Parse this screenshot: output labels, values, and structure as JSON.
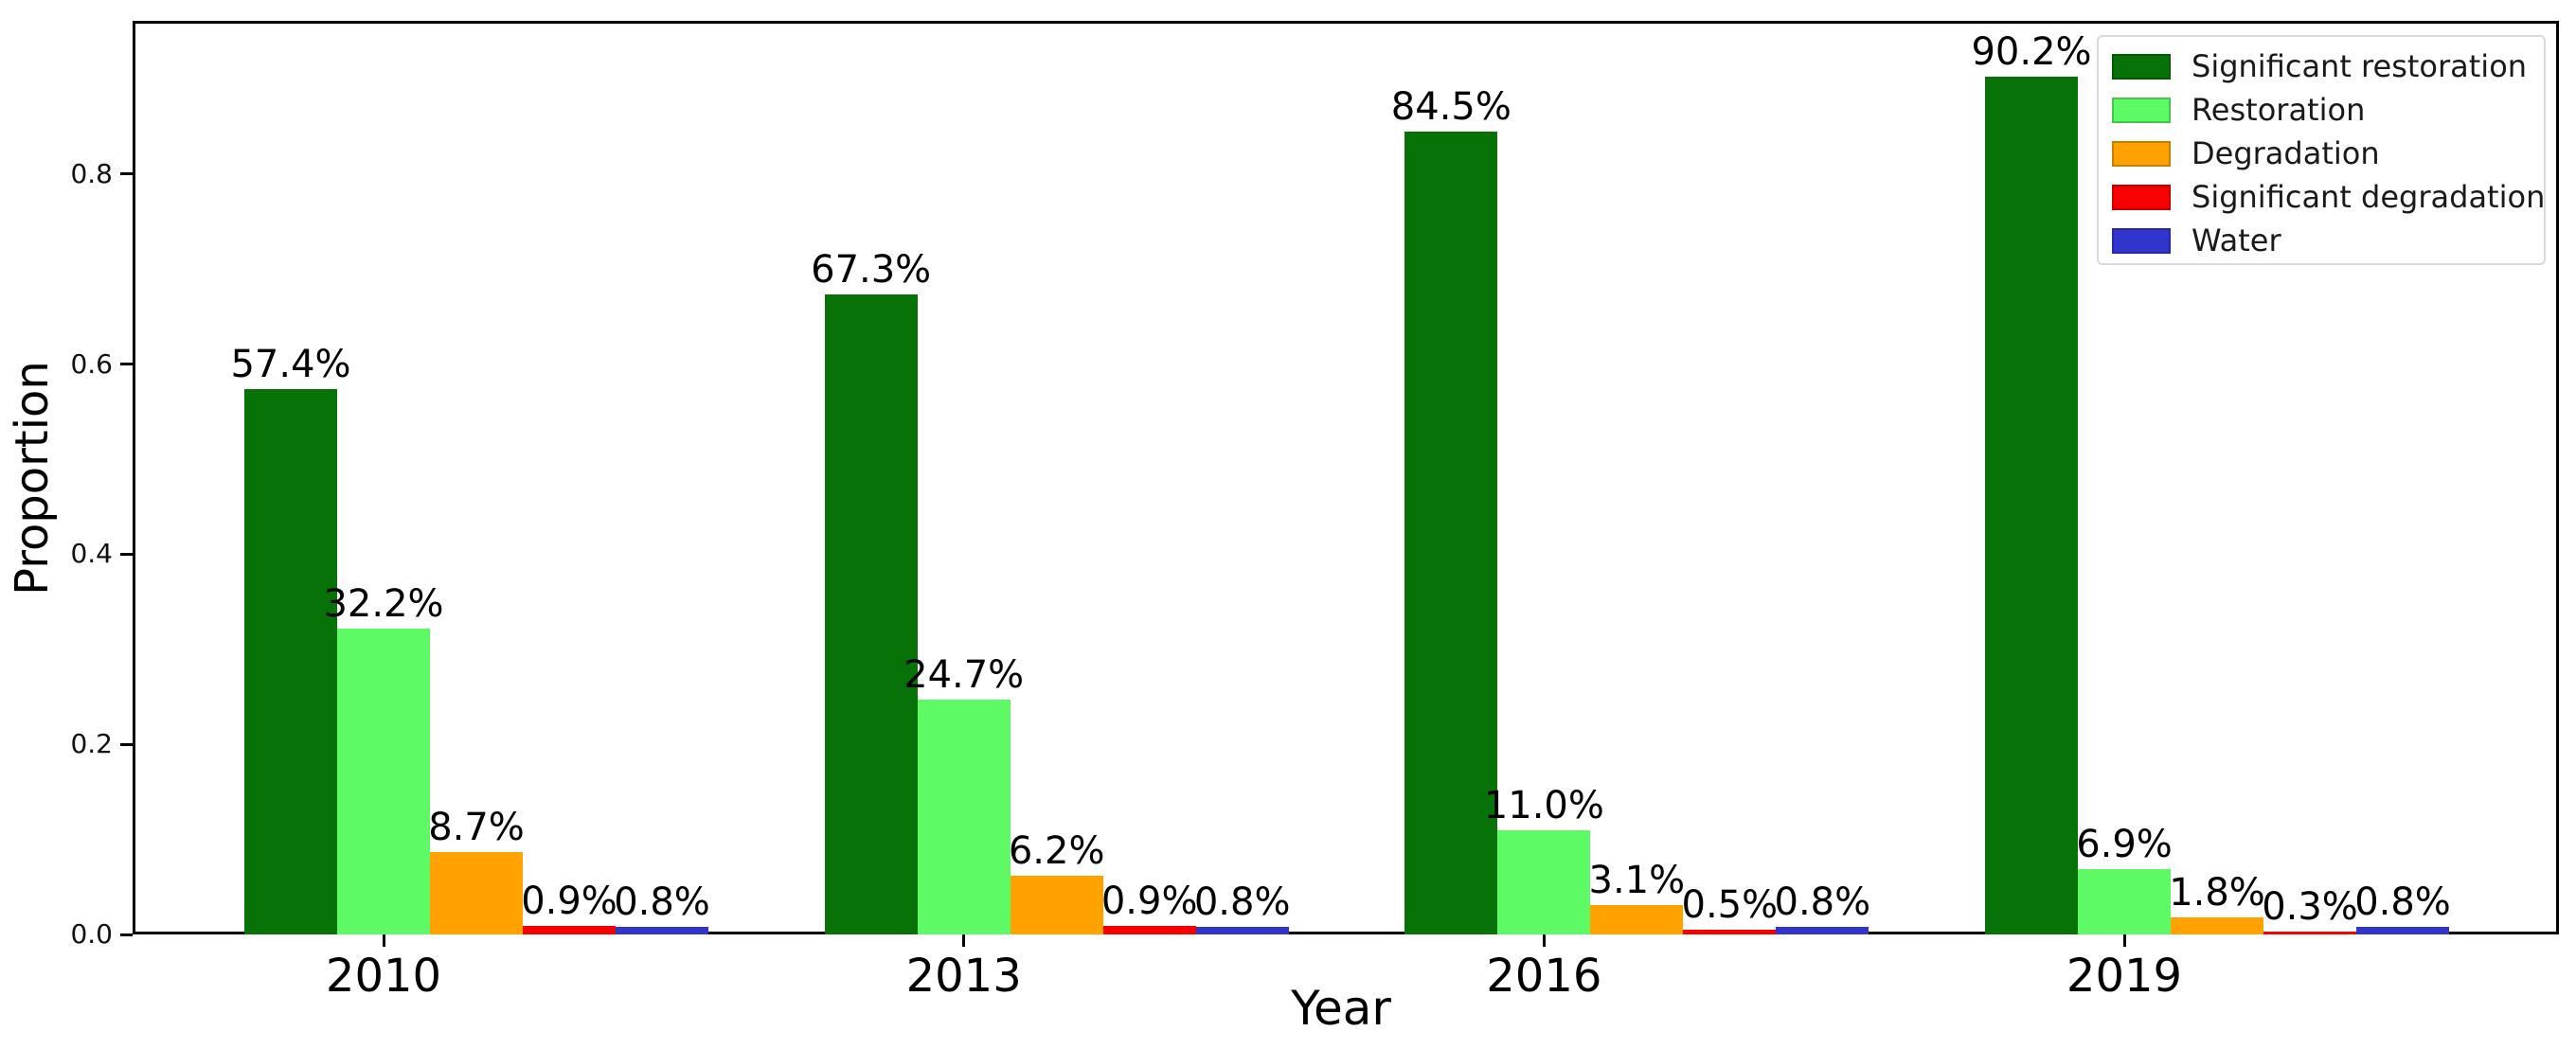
{
  "figure": {
    "background": "#ffffff",
    "text_color": "#000000"
  },
  "chart_data": {
    "type": "bar",
    "title": "",
    "xlabel": "Year",
    "ylabel": "Proportion",
    "categories": [
      "2010",
      "2013",
      "2016",
      "2019"
    ],
    "series": [
      {
        "name": "Significant restoration",
        "color": "#077207",
        "values": [
          57.4,
          67.3,
          84.5,
          90.2
        ],
        "labels": [
          "57.4%",
          "67.3%",
          "84.5%",
          "90.2%"
        ]
      },
      {
        "name": "Restoration",
        "color": "#5dfa66",
        "values": [
          32.2,
          24.7,
          11.0,
          6.9
        ],
        "labels": [
          "32.2%",
          "24.7%",
          "11.0%",
          "6.9%"
        ]
      },
      {
        "name": "Degradation",
        "color": "#ffa200",
        "values": [
          8.7,
          6.2,
          3.1,
          1.8
        ],
        "labels": [
          "8.7%",
          "6.2%",
          "3.1%",
          "1.8%"
        ]
      },
      {
        "name": "Significant degradation",
        "color": "#f80000",
        "values": [
          0.9,
          0.9,
          0.5,
          0.3
        ],
        "labels": [
          "0.9%",
          "0.9%",
          "0.5%",
          "0.3%"
        ]
      },
      {
        "name": "Water",
        "color": "#3135cd",
        "values": [
          0.8,
          0.8,
          0.8,
          0.8
        ],
        "labels": [
          "0.8%",
          "0.8%",
          "0.8%",
          "0.8%"
        ]
      }
    ],
    "yticks": {
      "values": [
        0.0,
        0.2,
        0.4,
        0.6,
        0.8
      ],
      "labels": [
        "0.0",
        "0.2",
        "0.4",
        "0.6",
        "0.8"
      ]
    },
    "ylim": [
      0,
      0.96
    ],
    "grid": false,
    "legend": {
      "position": "upper right",
      "frame": true
    }
  }
}
